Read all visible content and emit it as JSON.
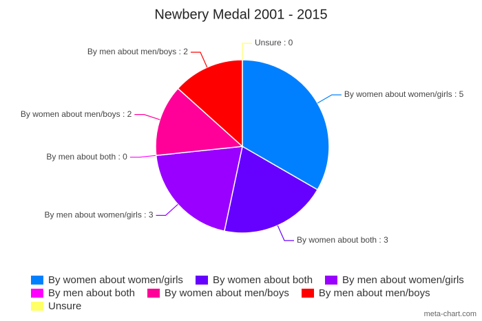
{
  "chart_data": {
    "type": "pie",
    "title": "Newbery Medal 2001 - 2015",
    "categories": [
      "By women about women/girls",
      "By women about both",
      "By men about women/girls",
      "By men about both",
      "By women about men/boys",
      "By men about men/boys",
      "Unsure"
    ],
    "values": [
      5,
      3,
      3,
      0,
      2,
      2,
      0
    ],
    "value_labels": [
      "By women about women/girls : 5",
      "By women about both : 3",
      "By men about women/girls : 3",
      "By men about both : 0",
      "By women about men/boys : 2",
      "By men about men/boys : 2",
      "Unsure : 0"
    ],
    "colors": [
      "#0080ff",
      "#6600ff",
      "#9900ff",
      "#ff00ff",
      "#ff0099",
      "#ff0000",
      "#ffff66"
    ],
    "legend": "bottom",
    "credit": "meta-chart.com"
  }
}
